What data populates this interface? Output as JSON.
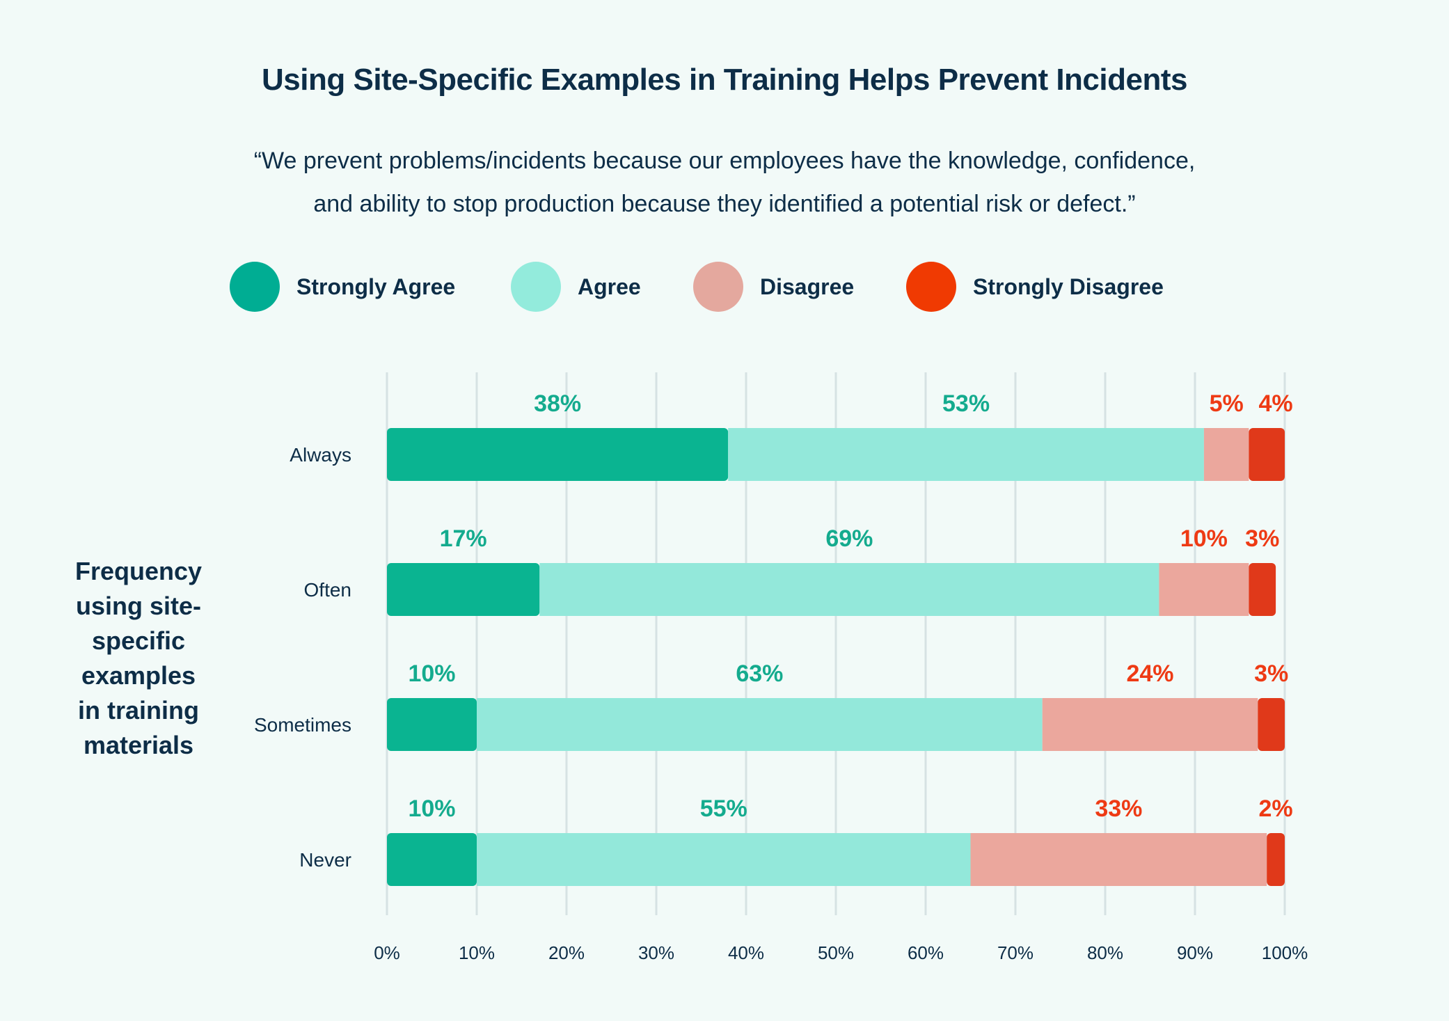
{
  "title": "Using Site-Specific Examples in Training Helps Prevent Incidents",
  "subtitle_lines": [
    "“We prevent problems/incidents because our employees have the knowledge, confidence,",
    "and ability to stop production because they identified a potential risk or defect.”"
  ],
  "chart_data": {
    "type": "bar",
    "orientation": "horizontal",
    "stacked": true,
    "title": "Using Site-Specific Examples in Training Helps Prevent Incidents",
    "ylabel": "Frequency using site-specific examples in training materials",
    "ylabel_lines": [
      "Frequency",
      "using site-",
      "specific",
      "examples",
      "in training",
      "materials"
    ],
    "categories": [
      "Always",
      "Often",
      "Sometimes",
      "Never"
    ],
    "series": [
      {
        "name": "Strongly Agree",
        "color": "#0ab491",
        "label_color": "#14ab8e",
        "values": [
          38,
          17,
          10,
          10
        ]
      },
      {
        "name": "Agree",
        "color": "#93e8da",
        "label_color": "#14ab8e",
        "values": [
          53,
          69,
          63,
          55
        ]
      },
      {
        "name": "Disagree",
        "color": "#eba79d",
        "label_color": "#ee3a14",
        "values": [
          5,
          10,
          24,
          33
        ]
      },
      {
        "name": "Strongly Disagree",
        "color": "#e0391a",
        "label_color": "#ee3a14",
        "values": [
          4,
          3,
          3,
          2
        ]
      }
    ],
    "legend_colors": [
      "#00ad93",
      "#93ebdc",
      "#e4a89e",
      "#f03a02"
    ],
    "xlim": [
      0,
      100
    ],
    "xticks": [
      "0%",
      "10%",
      "20%",
      "30%",
      "40%",
      "50%",
      "60%",
      "70%",
      "80%",
      "90%",
      "100%"
    ],
    "grid": "vertical",
    "legend_position": "top"
  }
}
